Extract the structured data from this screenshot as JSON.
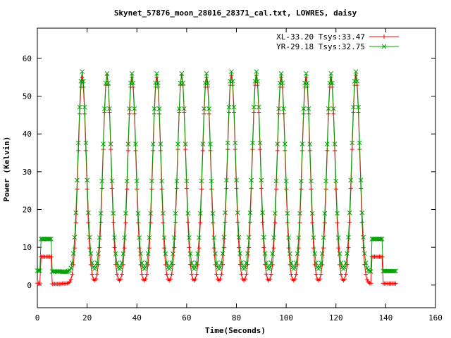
{
  "chart_data": {
    "type": "line",
    "title": "Skynet_57876_moon_28016_28371_cal.txt, LOWRES, daisy",
    "xlabel": "Time(Seconds)",
    "ylabel": "Power (Kelvin)",
    "xlim": [
      0,
      160
    ],
    "ylim": [
      -6,
      68
    ],
    "xticks": [
      0,
      20,
      40,
      60,
      80,
      100,
      120,
      140,
      160
    ],
    "yticks": [
      0,
      10,
      20,
      30,
      40,
      50,
      60
    ],
    "grid": false,
    "legend_position": "top-right",
    "cal_low_segments": [
      [
        1.5,
        5.5
      ],
      [
        134.5,
        138.5
      ]
    ],
    "peak_times": [
      18,
      28,
      38,
      48,
      58,
      68,
      78,
      88,
      98,
      108,
      118,
      128
    ],
    "time_start": 0,
    "time_end": 144,
    "sample_step": 0.5,
    "series": [
      {
        "name": "XL-33.20 Tsys:33.47",
        "color": "#ff0000",
        "marker": "+",
        "pre_level": 0.5,
        "cal_level": 7.5,
        "gap_level": 0.3,
        "baseline": 0.4,
        "peaks": [
          55,
          55.5,
          55,
          55,
          55.5,
          55,
          55.5,
          55.5,
          55,
          55,
          55,
          55.5
        ],
        "post_level": 0.4
      },
      {
        "name": "YR-29.18 Tsys:32.75",
        "color": "#00a000",
        "marker": "x",
        "pre_level": 3.8,
        "cal_level": 12.2,
        "gap_level": 3.6,
        "baseline": 3.5,
        "peaks": [
          56.5,
          56,
          56,
          56,
          56,
          56,
          56.5,
          56.5,
          56,
          56,
          56,
          56.5
        ],
        "post_level": 3.7
      }
    ],
    "peak_sigma": 1.6
  }
}
